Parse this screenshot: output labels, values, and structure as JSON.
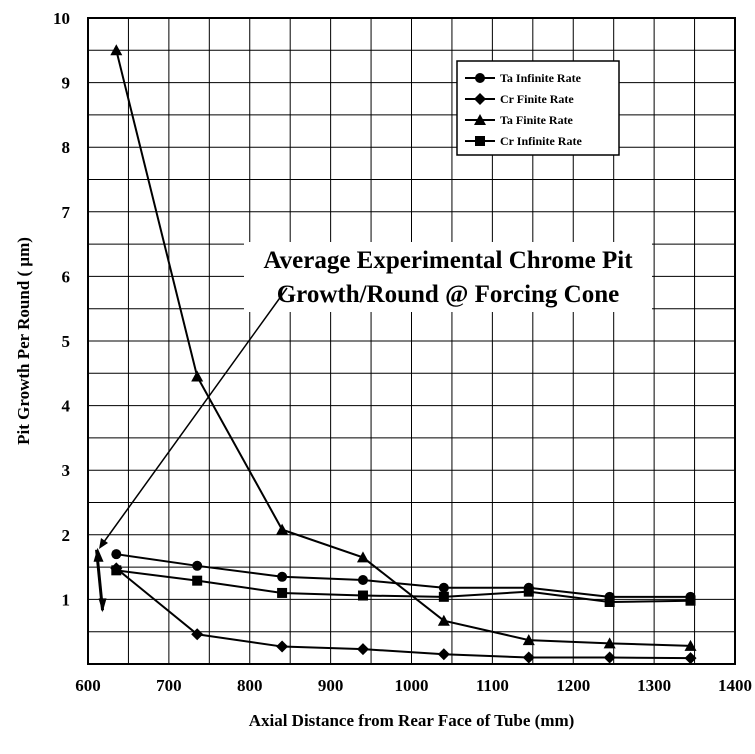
{
  "chart_data": {
    "type": "line",
    "title": "",
    "xlabel": "Axial Distance from Rear Face of Tube (mm)",
    "ylabel": "Pit Growth Per Round (   μm)",
    "xlim": [
      600,
      1400
    ],
    "ylim": [
      0,
      10
    ],
    "x_ticks": [
      600,
      700,
      800,
      900,
      1000,
      1100,
      1200,
      1300,
      1400
    ],
    "y_ticks": [
      1,
      2,
      3,
      4,
      5,
      6,
      7,
      8,
      9,
      10
    ],
    "grid": true,
    "minor_grid_x_step": 50,
    "legend_position": "top-right",
    "series": [
      {
        "name": "Ta Infinite Rate",
        "marker": "circle",
        "x": [
          635,
          735,
          840,
          940,
          1040,
          1145,
          1245,
          1345
        ],
        "y": [
          1.7,
          1.52,
          1.35,
          1.3,
          1.18,
          1.18,
          1.04,
          1.04
        ]
      },
      {
        "name": "Cr Finite Rate",
        "marker": "diamond",
        "x": [
          635,
          735,
          840,
          940,
          1040,
          1145,
          1245,
          1345
        ],
        "y": [
          1.48,
          0.46,
          0.27,
          0.23,
          0.15,
          0.1,
          0.1,
          0.09
        ]
      },
      {
        "name": "Ta Finite Rate",
        "marker": "triangle",
        "x": [
          635,
          735,
          840,
          940,
          1040,
          1145,
          1245,
          1345
        ],
        "y": [
          9.5,
          4.45,
          2.08,
          1.65,
          0.67,
          0.37,
          0.32,
          0.28
        ]
      },
      {
        "name": "Cr Infinite Rate",
        "marker": "square",
        "x": [
          635,
          735,
          840,
          940,
          1040,
          1145,
          1245,
          1345
        ],
        "y": [
          1.45,
          1.29,
          1.1,
          1.06,
          1.04,
          1.12,
          0.96,
          0.98
        ]
      }
    ],
    "annotation": {
      "lines": [
        "Average Experimental Chrome Pit",
        "Growth/Round @ Forcing Cone"
      ],
      "range_x": 618,
      "range_y": [
        0.8,
        1.8
      ]
    }
  }
}
